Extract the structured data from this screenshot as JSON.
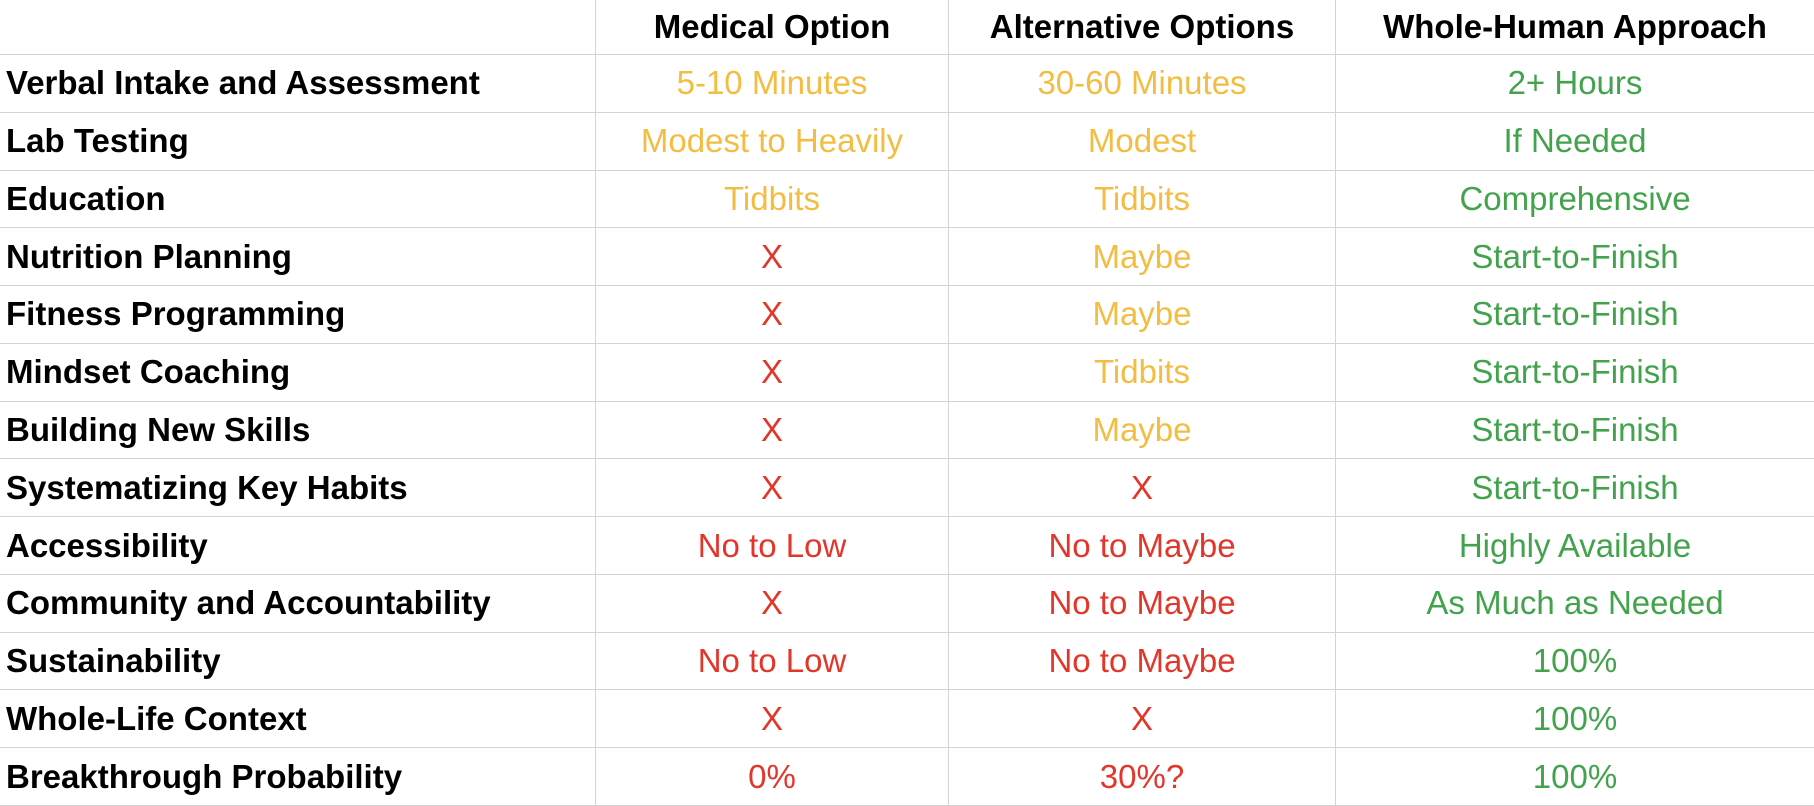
{
  "table": {
    "headers": [
      "Medical Option",
      "Alternative Options",
      "Whole-Human Approach"
    ],
    "rows": [
      [
        "Verbal Intake and Assessment",
        "5-10 Minutes",
        "30-60 Minutes",
        "2+ Hours"
      ],
      [
        "Lab Testing",
        "Modest to Heavily",
        "Modest",
        "If Needed"
      ],
      [
        "Education",
        "Tidbits",
        "Tidbits",
        "Comprehensive"
      ],
      [
        "Nutrition Planning",
        "X",
        "Maybe",
        "Start-to-Finish"
      ],
      [
        "Fitness Programming",
        "X",
        "Maybe",
        "Start-to-Finish"
      ],
      [
        "Mindset Coaching",
        "X",
        "Tidbits",
        "Start-to-Finish"
      ],
      [
        "Building New Skills",
        "X",
        "Maybe",
        "Start-to-Finish"
      ],
      [
        "Systematizing Key Habits",
        "X",
        "X",
        "Start-to-Finish"
      ],
      [
        "Accessibility",
        "No to Low",
        "No to Maybe",
        "Highly Available"
      ],
      [
        "Community and Accountability",
        "X",
        "No to Maybe",
        "As Much as Needed"
      ],
      [
        "Sustainability",
        "No to Low",
        "No to Maybe",
        "100%"
      ],
      [
        "Whole-Life Context",
        "X",
        "X",
        "100%"
      ],
      [
        "Breakthrough Probability",
        "0%",
        "30%?",
        "100%"
      ]
    ],
    "cell_colors": [
      [
        "#000000",
        "#f3bd42",
        "#f3bd42",
        "#43a34c"
      ],
      [
        "#000000",
        "#f3bd42",
        "#f3bd42",
        "#43a34c"
      ],
      [
        "#000000",
        "#f3bd42",
        "#f3bd42",
        "#43a34c"
      ],
      [
        "#000000",
        "#e3362b",
        "#f3bd42",
        "#43a34c"
      ],
      [
        "#000000",
        "#e3362b",
        "#f3bd42",
        "#43a34c"
      ],
      [
        "#000000",
        "#e3362b",
        "#f3bd42",
        "#43a34c"
      ],
      [
        "#000000",
        "#e3362b",
        "#f3bd42",
        "#43a34c"
      ],
      [
        "#000000",
        "#e3362b",
        "#e3362b",
        "#43a34c"
      ],
      [
        "#000000",
        "#e3362b",
        "#e3362b",
        "#43a34c"
      ],
      [
        "#000000",
        "#e3362b",
        "#e3362b",
        "#43a34c"
      ],
      [
        "#000000",
        "#e3362b",
        "#e3362b",
        "#43a34c"
      ],
      [
        "#000000",
        "#e3362b",
        "#e3362b",
        "#43a34c"
      ],
      [
        "#000000",
        "#e3362b",
        "#e3362b",
        "#43a34c"
      ]
    ]
  }
}
